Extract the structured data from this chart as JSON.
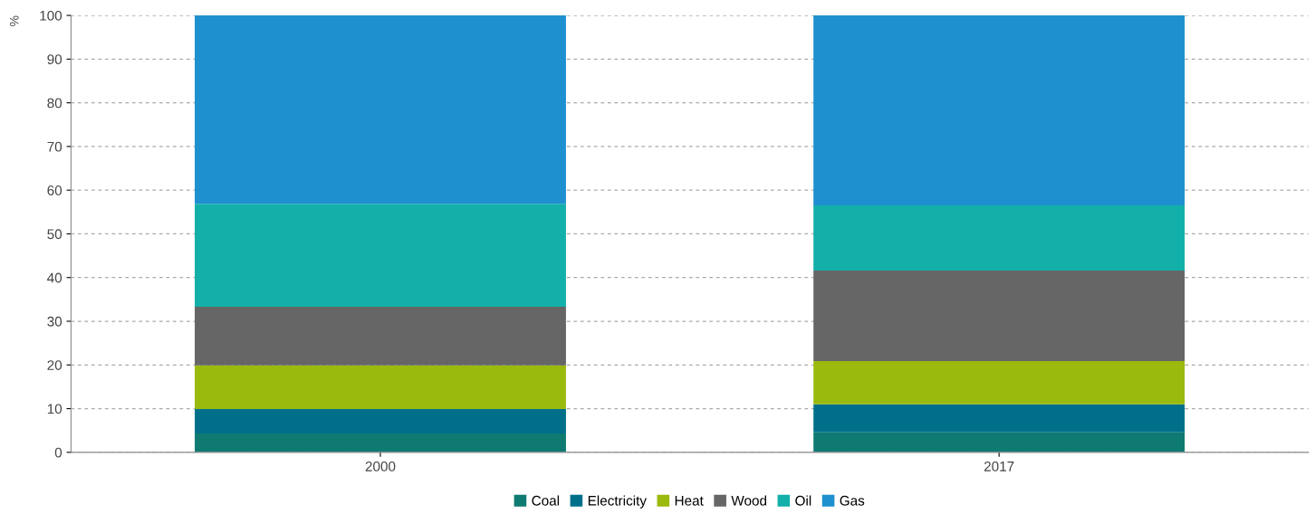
{
  "chart_data": {
    "type": "bar",
    "stacked": true,
    "ylabel": "%",
    "categories": [
      "2000",
      "2017"
    ],
    "series": [
      {
        "name": "Coal",
        "color": "#0f7a72",
        "values": [
          4.3,
          4.6
        ]
      },
      {
        "name": "Electricity",
        "color": "#00708a",
        "values": [
          5.6,
          6.4
        ]
      },
      {
        "name": "Heat",
        "color": "#9aba0e",
        "values": [
          10.0,
          9.9
        ]
      },
      {
        "name": "Wood",
        "color": "#666666",
        "values": [
          13.4,
          20.7
        ]
      },
      {
        "name": "Oil",
        "color": "#13afa9",
        "values": [
          23.6,
          14.9
        ]
      },
      {
        "name": "Gas",
        "color": "#1e90cf",
        "values": [
          43.1,
          43.5
        ]
      }
    ],
    "ylim": [
      0,
      100
    ],
    "yticks": [
      0,
      10,
      20,
      30,
      40,
      50,
      60,
      70,
      80,
      90,
      100
    ],
    "grid": "y",
    "legend": "bottom"
  }
}
